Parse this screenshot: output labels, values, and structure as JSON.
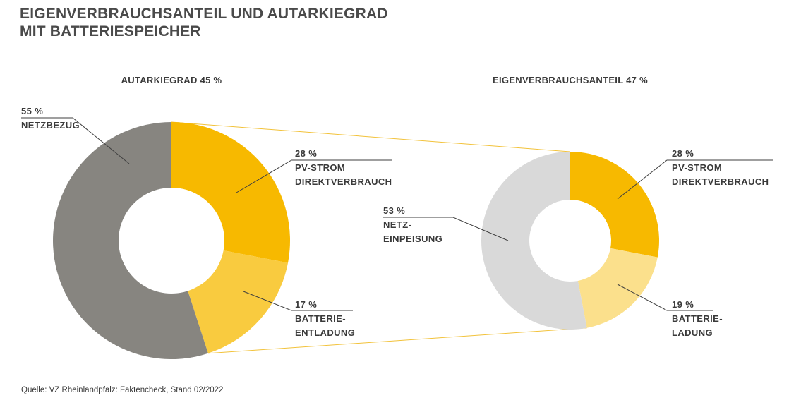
{
  "title_lines": [
    "EIGENVERBRAUCHSANTEIL UND AUTARKIEGRAD",
    "MIT BATTERIESPEICHER"
  ],
  "source": "Quelle: VZ Rheinlandpfalz: Faktencheck, Stand 02/2022",
  "colors": {
    "netzbezug": "#878580",
    "pv_strom": "#f7b900",
    "batterie_entladung": "#f9cb3f",
    "batterie_ladung": "#fbe08c",
    "netzeinspeisung": "#d9d9d9",
    "connector": "#f2c23a",
    "text": "#3a3a3a"
  },
  "chart_data": [
    {
      "type": "pie",
      "subtitle": "AUTARKIEGRAD 45 %",
      "slices": [
        {
          "key": "pv",
          "value": 28,
          "label_lines": [
            "28 %",
            "PV-STROM",
            "DIREKTVERBRAUCH"
          ],
          "color": "#f7b900"
        },
        {
          "key": "bat",
          "value": 17,
          "label_lines": [
            "17 %",
            "BATTERIE-",
            "ENTLADUNG"
          ],
          "color": "#f9cb3f"
        },
        {
          "key": "netz",
          "value": 55,
          "label_lines": [
            "55 %",
            "NETZBEZUG"
          ],
          "color": "#878580"
        }
      ]
    },
    {
      "type": "pie",
      "subtitle": "EIGENVERBRAUCHSANTEIL 47 %",
      "slices": [
        {
          "key": "pv",
          "value": 28,
          "label_lines": [
            "28 %",
            "PV-STROM",
            "DIREKTVERBRAUCH"
          ],
          "color": "#f7b900"
        },
        {
          "key": "bat",
          "value": 19,
          "label_lines": [
            "19 %",
            "BATTERIE-",
            "LADUNG"
          ],
          "color": "#fbe08c"
        },
        {
          "key": "netz",
          "value": 53,
          "label_lines": [
            "53 %",
            "NETZ-",
            "EINPEISUNG"
          ],
          "color": "#d9d9d9"
        }
      ]
    }
  ]
}
